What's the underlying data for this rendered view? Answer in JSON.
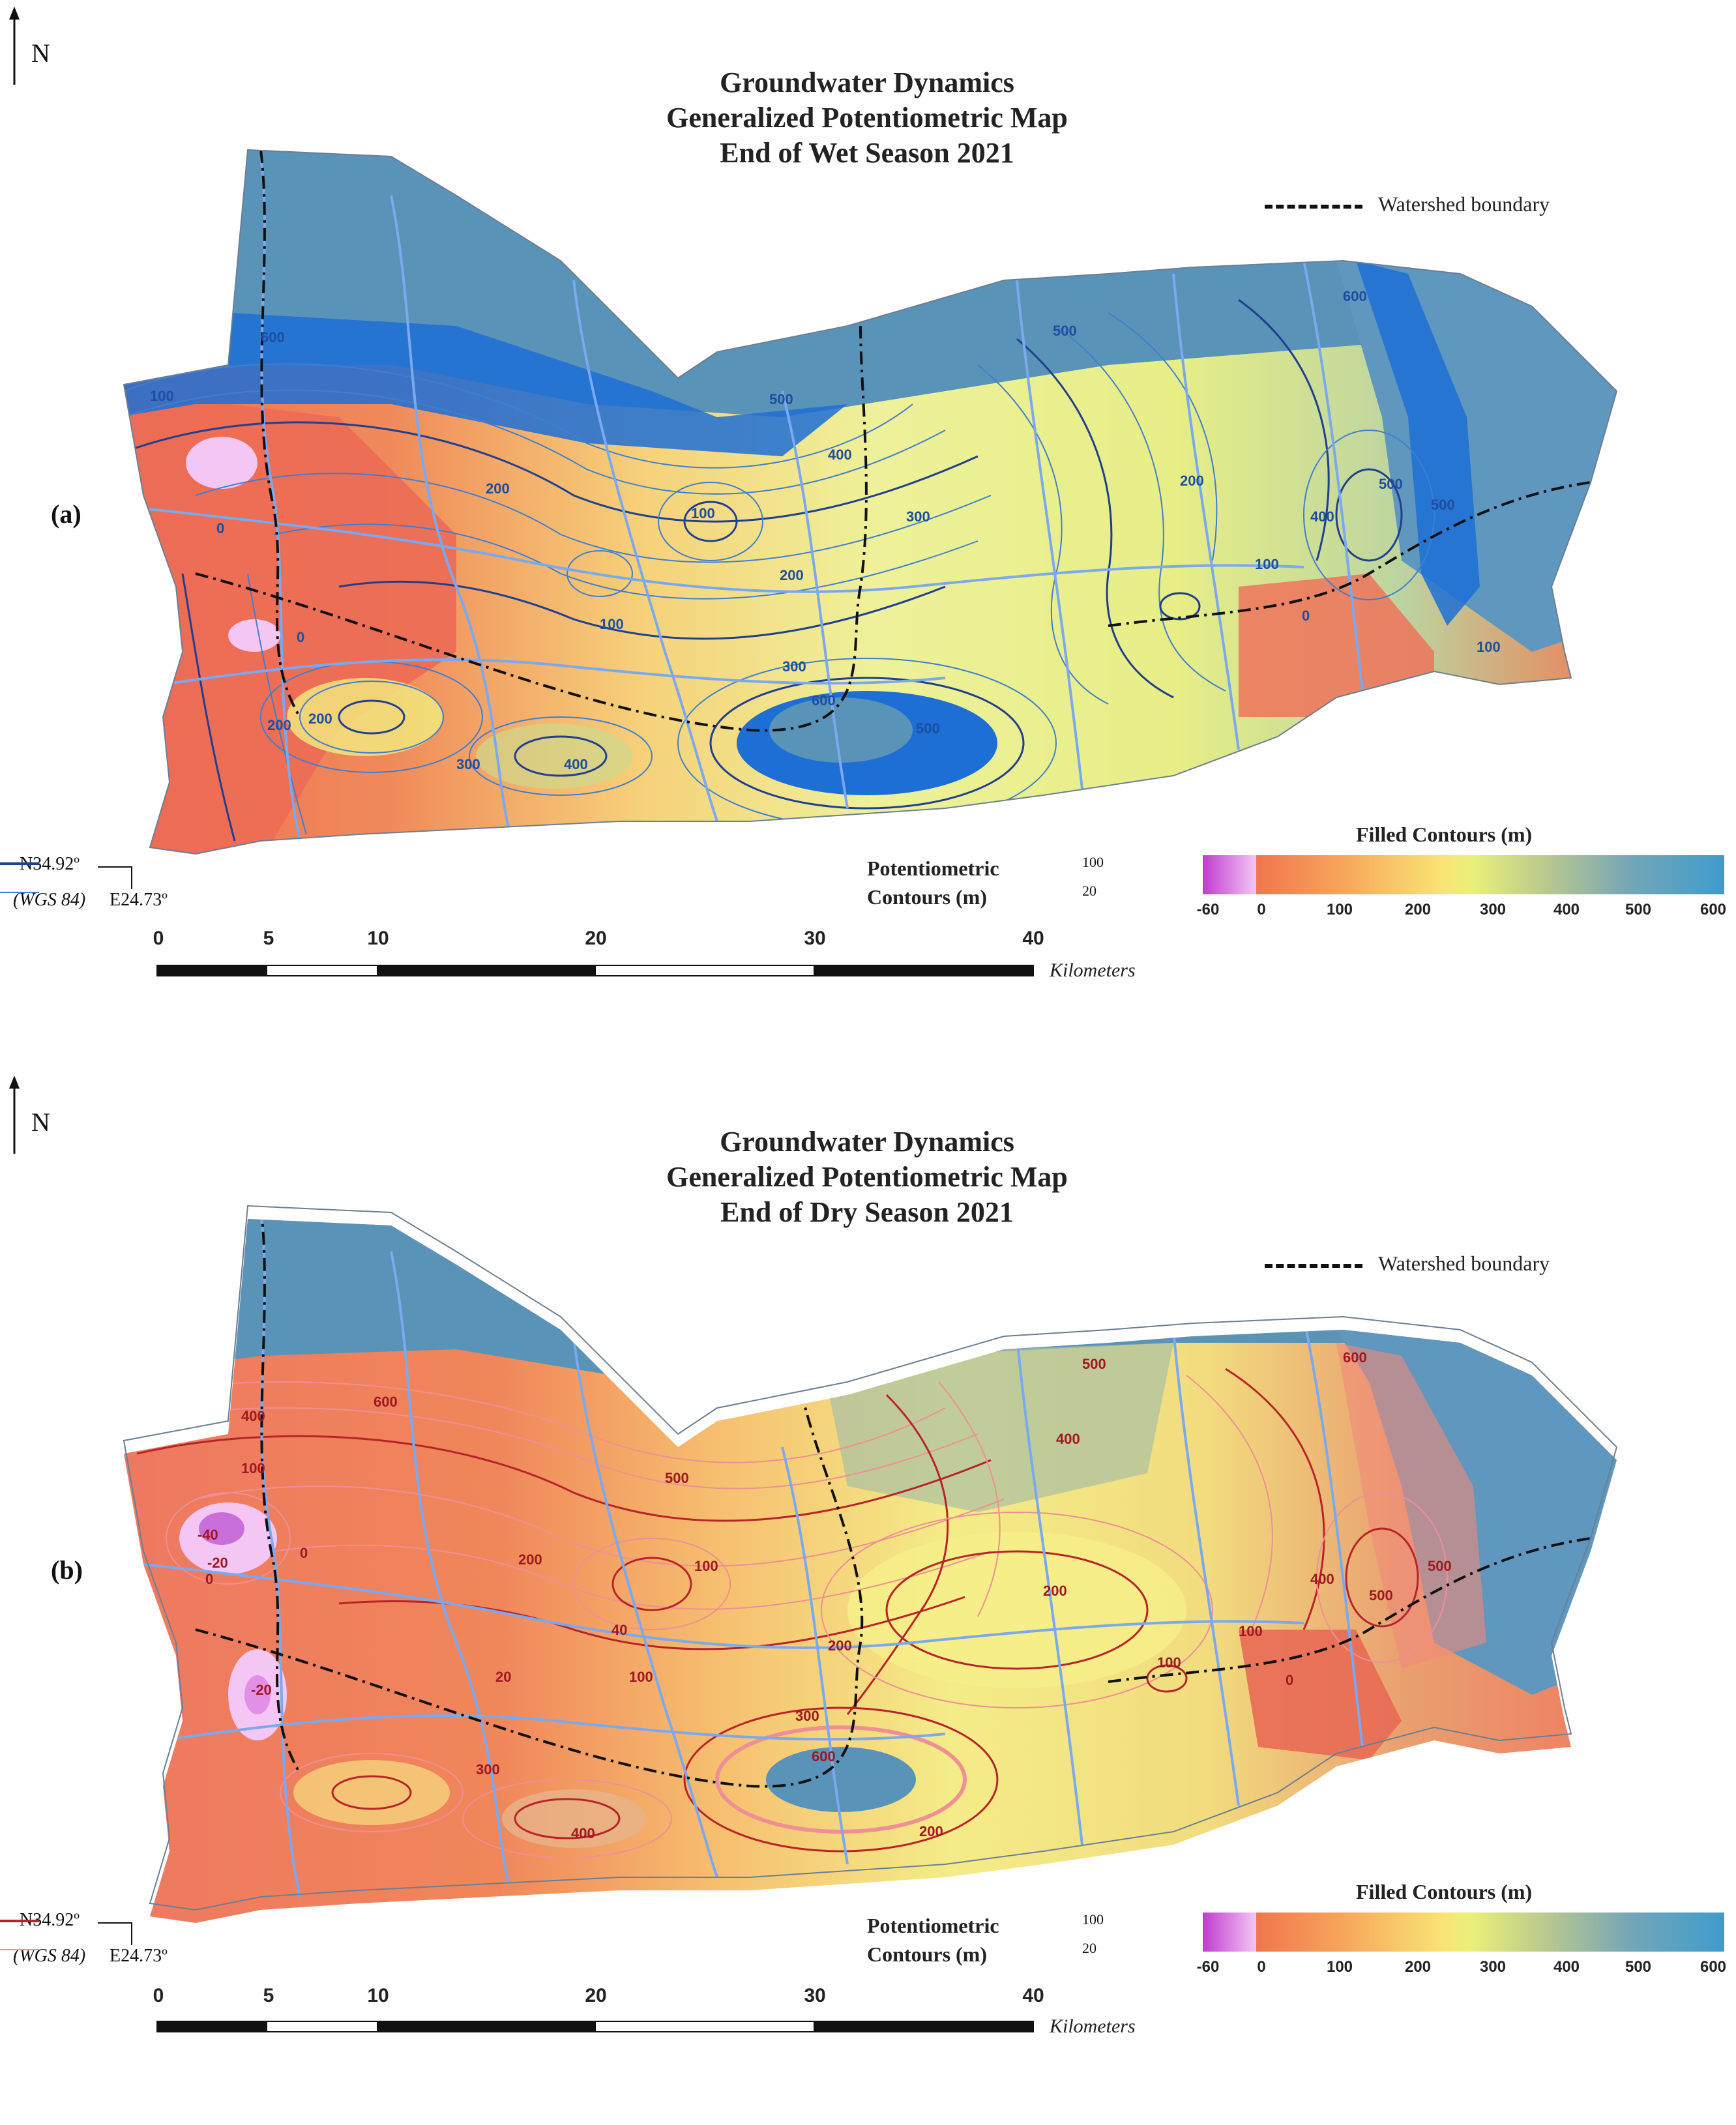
{
  "panels": [
    {
      "label": "(a)",
      "title_lines": [
        "Groundwater Dynamics",
        "Generalized Potentiometric Map",
        "End of Wet Season 2021"
      ],
      "contour_color_major": "#1f3f8f",
      "contour_color_minor": "#3f7fd0",
      "contour_labels": [
        {
          "text": "600"
        },
        {
          "text": "100"
        },
        {
          "text": "0"
        },
        {
          "text": "200"
        },
        {
          "text": "100"
        },
        {
          "text": "200"
        },
        {
          "text": "0"
        },
        {
          "text": "100"
        },
        {
          "text": "200"
        },
        {
          "text": "300"
        },
        {
          "text": "400"
        },
        {
          "text": "300"
        },
        {
          "text": "600"
        },
        {
          "text": "500"
        },
        {
          "text": "200"
        },
        {
          "text": "400"
        },
        {
          "text": "500"
        },
        {
          "text": "500"
        },
        {
          "text": "300"
        },
        {
          "text": "200"
        },
        {
          "text": "600"
        },
        {
          "text": "500"
        },
        {
          "text": "500"
        },
        {
          "text": "400"
        },
        {
          "text": "100"
        },
        {
          "text": "0"
        },
        {
          "text": "100"
        }
      ]
    },
    {
      "label": "(b)",
      "title_lines": [
        "Groundwater Dynamics",
        "Generalized Potentiometric Map",
        "End of Dry Season 2021"
      ],
      "contour_color_major": "#b8232a",
      "contour_color_minor": "#ef8f95",
      "contour_labels": [
        {
          "text": "400"
        },
        {
          "text": "600"
        },
        {
          "text": "100"
        },
        {
          "text": "-40"
        },
        {
          "text": "-20"
        },
        {
          "text": "0"
        },
        {
          "text": "0"
        },
        {
          "text": "-20"
        },
        {
          "text": "200"
        },
        {
          "text": "500"
        },
        {
          "text": "100"
        },
        {
          "text": "40"
        },
        {
          "text": "20"
        },
        {
          "text": "100"
        },
        {
          "text": "200"
        },
        {
          "text": "300"
        },
        {
          "text": "300"
        },
        {
          "text": "400"
        },
        {
          "text": "600"
        },
        {
          "text": "200"
        },
        {
          "text": "500"
        },
        {
          "text": "400"
        },
        {
          "text": "200"
        },
        {
          "text": "100"
        },
        {
          "text": "100"
        },
        {
          "text": "0"
        },
        {
          "text": "600"
        },
        {
          "text": "400"
        },
        {
          "text": "500"
        },
        {
          "text": "500"
        }
      ]
    }
  ],
  "north_letter": "N",
  "legend": {
    "watershed_boundary": "Watershed boundary",
    "potentiometric_title_line1": "Potentiometric",
    "potentiometric_title_line2": "Contours (m)",
    "contour_major_value": "100",
    "contour_minor_value": "20",
    "filled_contours_title": "Filled Contours (m)",
    "filled_contour_ticks": [
      "-60",
      "0",
      "100",
      "200",
      "300",
      "400",
      "500",
      "600"
    ]
  },
  "coordinates": {
    "lat": "N34.92º",
    "datum": "(WGS 84)",
    "lon": "E24.73º"
  },
  "scale_bar": {
    "ticks": [
      "0",
      "5",
      "10",
      "20",
      "30",
      "40"
    ],
    "unit": "Kilometers"
  },
  "colors": {
    "negative_low": "#c03cd0",
    "low_head": "#f1764e",
    "mid_head": "#f9e474",
    "high_head": "#3f9ccd",
    "highland_relief": "#5a93b8",
    "rivers": "#7aa9f0",
    "boundary": "#111111"
  }
}
